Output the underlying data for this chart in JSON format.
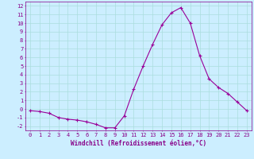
{
  "x": [
    0,
    1,
    2,
    3,
    4,
    5,
    6,
    7,
    8,
    9,
    10,
    11,
    12,
    13,
    14,
    15,
    16,
    17,
    18,
    19,
    20,
    21,
    22,
    23
  ],
  "y": [
    -0.2,
    -0.3,
    -0.5,
    -1.0,
    -1.2,
    -1.3,
    -1.5,
    -1.8,
    -2.2,
    -2.2,
    -0.8,
    2.3,
    5.0,
    7.5,
    9.8,
    11.2,
    11.8,
    10.0,
    6.2,
    3.5,
    2.5,
    1.8,
    0.8,
    -0.2
  ],
  "line_color": "#990099",
  "marker": "+",
  "marker_size": 3,
  "line_width": 0.8,
  "xlabel": "Windchill (Refroidissement éolien,°C)",
  "xlabel_fontsize": 5.5,
  "xlim": [
    -0.5,
    23.5
  ],
  "ylim": [
    -2.5,
    12.5
  ],
  "yticks": [
    -2,
    -1,
    0,
    1,
    2,
    3,
    4,
    5,
    6,
    7,
    8,
    9,
    10,
    11,
    12
  ],
  "xticks": [
    0,
    1,
    2,
    3,
    4,
    5,
    6,
    7,
    8,
    9,
    10,
    11,
    12,
    13,
    14,
    15,
    16,
    17,
    18,
    19,
    20,
    21,
    22,
    23
  ],
  "grid_color": "#aadddd",
  "bg_color": "#cceeff",
  "tick_fontsize": 5,
  "tick_color": "#880088",
  "spine_color": "#880088"
}
